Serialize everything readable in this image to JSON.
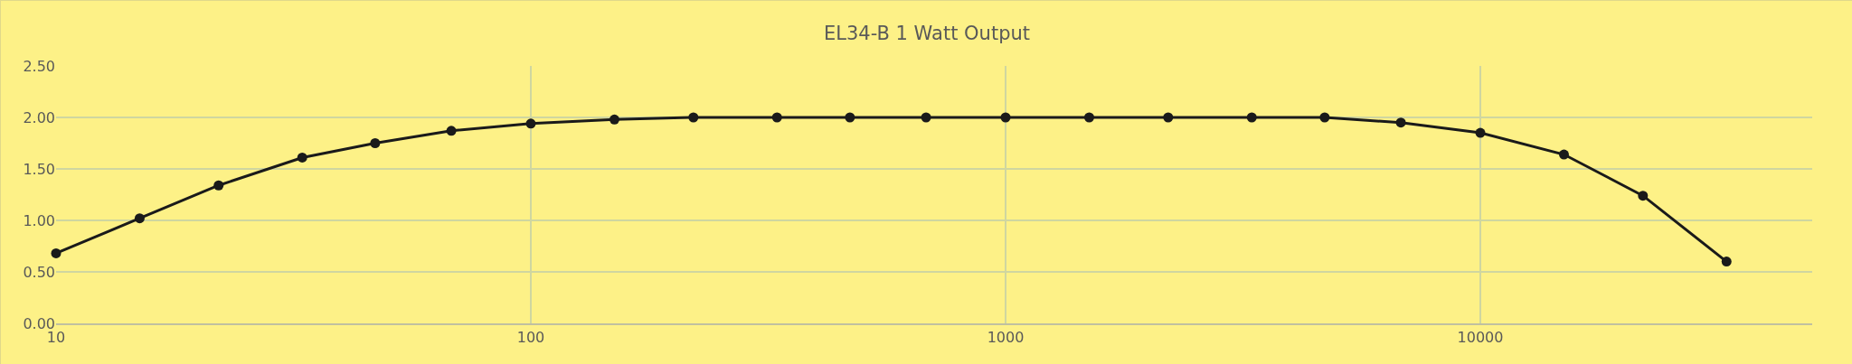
{
  "chart_data": {
    "type": "line",
    "title": "EL34-B 1 Watt Output",
    "x": [
      10,
      15,
      22,
      33,
      47,
      68,
      100,
      150,
      220,
      330,
      470,
      680,
      1000,
      1500,
      2200,
      3300,
      4700,
      6800,
      10000,
      15000,
      22000,
      33000
    ],
    "series": [
      {
        "color": "#1a1a1a",
        "values": [
          0.68,
          1.02,
          1.34,
          1.61,
          1.75,
          1.87,
          1.94,
          1.98,
          2.0,
          2.0,
          2.0,
          2.0,
          2.0,
          2.0,
          2.0,
          2.0,
          2.0,
          1.95,
          1.85,
          1.64,
          1.24,
          0.6
        ]
      }
    ],
    "log": "x",
    "xlim": [
      10,
      50000
    ],
    "xticks": [
      10,
      100,
      1000,
      10000
    ],
    "ylim": [
      0,
      2.5
    ],
    "yticks": [
      {
        "value": 0,
        "label": "0.00"
      },
      {
        "value": 0.5,
        "label": "0.50"
      },
      {
        "value": 1,
        "label": "1.00"
      },
      {
        "value": 1.5,
        "label": "1.50"
      },
      {
        "value": 2,
        "label": "2.00"
      },
      {
        "value": 2.5,
        "label": "2.50"
      }
    ],
    "grid": true,
    "marker": "circle",
    "line_style": "solid"
  }
}
